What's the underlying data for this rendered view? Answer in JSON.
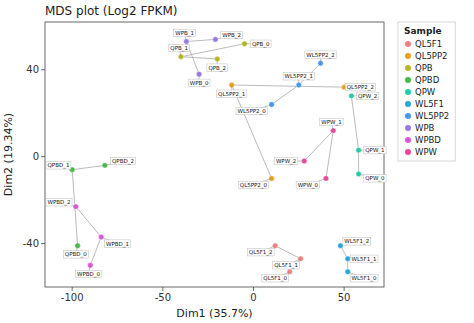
{
  "chart_data": {
    "type": "scatter",
    "title": "MDS plot (Log2 FPKM)",
    "x_label": "Dim1 (35.7%)",
    "y_label": "Dim2 (19.34%)",
    "xlim": [
      -115,
      72
    ],
    "ylim": [
      -60,
      62
    ],
    "xticks": [
      -100,
      -50,
      0,
      50
    ],
    "yticks": [
      -40,
      0,
      40
    ],
    "legend": "right",
    "legend_title": "Sample",
    "marker": "circle",
    "line_style": "solid",
    "series": [
      {
        "name": "QL5F1",
        "color": "#f08080",
        "x": [
          20,
          26,
          12
        ],
        "values": [
          -53,
          -47,
          -41
        ],
        "labels": [
          "QL5F1_0",
          "QL5F1_1",
          "QL5F1_2"
        ]
      },
      {
        "name": "QL5PP2",
        "color": "#e8a020",
        "x": [
          10,
          -12,
          50
        ],
        "values": [
          -10,
          33,
          32
        ],
        "labels": [
          "QL5PP2_0",
          "QL5PP2_1",
          "QL5PP2_2"
        ]
      },
      {
        "name": "QPB",
        "color": "#b8b820",
        "x": [
          -5,
          -40,
          -20
        ],
        "values": [
          52,
          46,
          45
        ],
        "labels": [
          "QPB_0",
          "QPB_1",
          "QPB_2"
        ]
      },
      {
        "name": "QPBD",
        "color": "#44bb44",
        "x": [
          -97,
          -100,
          -82
        ],
        "values": [
          -41,
          -6,
          -4
        ],
        "labels": [
          "QPBD_0",
          "QPBD_1",
          "QPBD_2"
        ]
      },
      {
        "name": "QPW",
        "color": "#22ccaa",
        "x": [
          58,
          58,
          54
        ],
        "values": [
          -8,
          3,
          28
        ],
        "labels": [
          "QPW_0",
          "QPW_1",
          "QPW_2"
        ]
      },
      {
        "name": "WL5F1",
        "color": "#22aadd",
        "x": [
          52,
          52,
          48
        ],
        "values": [
          -53,
          -47,
          -41
        ],
        "labels": [
          "WL5F1_0",
          "WL5F1_1",
          "WL5F1_2"
        ]
      },
      {
        "name": "WL5PP2",
        "color": "#4499ee",
        "x": [
          10,
          25,
          37
        ],
        "values": [
          24,
          33,
          43
        ],
        "labels": [
          "WL5PP2_0",
          "WL5PP2_1",
          "WL5PP2_2"
        ]
      },
      {
        "name": "WPB",
        "color": "#9977ee",
        "x": [
          -30,
          -37,
          -21
        ],
        "values": [
          38,
          53,
          54
        ],
        "labels": [
          "WPB_0",
          "WPB_1",
          "WPB_2"
        ]
      },
      {
        "name": "WPBD",
        "color": "#dd55dd",
        "x": [
          -90,
          -84,
          -98
        ],
        "values": [
          -50,
          -37,
          -23
        ],
        "labels": [
          "WPBD_0",
          "WPBD_1",
          "WPBD_2"
        ]
      },
      {
        "name": "WPW",
        "color": "#ee4499",
        "x": [
          40,
          44,
          28
        ],
        "values": [
          -10,
          12,
          -2
        ],
        "labels": [
          "WPW_0",
          "WPW_1",
          "WPW_2"
        ]
      }
    ]
  }
}
